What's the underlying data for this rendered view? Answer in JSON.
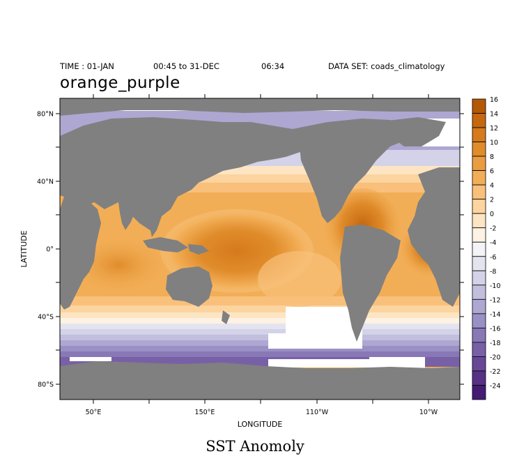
{
  "header": {
    "time_label": "TIME : 01-JAN",
    "time_range": "00:45 to 31-DEC",
    "time_end": "06:34",
    "dataset": "DATA SET: coads_climatology"
  },
  "palette_name": "orange_purple",
  "bottom_title": "SST Anomoly",
  "chart_data": {
    "type": "heatmap",
    "title": "orange_purple",
    "subtitle": "SST Anomoly",
    "xlabel": "LONGITUDE",
    "ylabel": "LATITUDE",
    "x_ticks": [
      "50°E",
      "150°E",
      "110°W",
      "10°W"
    ],
    "y_ticks": [
      "80°N",
      "40°N",
      "0°",
      "40°S",
      "80°S"
    ],
    "colorbar": {
      "levels": [
        16,
        14,
        12,
        10,
        8,
        6,
        4,
        2,
        0,
        -2,
        -4,
        -6,
        -8,
        -10,
        -12,
        -14,
        -16,
        -18,
        -20,
        -22,
        -24
      ],
      "colors": [
        "#b35806",
        "#c5670f",
        "#d67a1c",
        "#e08c2b",
        "#ea9d40",
        "#f2ae56",
        "#f8c07b",
        "#fbd49f",
        "#fde5c4",
        "#fdf2e3",
        "#f4f3f7",
        "#e4e4f0",
        "#d3d2e8",
        "#c1bede",
        "#aea7d2",
        "#9a90c4",
        "#8878b6",
        "#7860a6",
        "#684896",
        "#573185",
        "#451c74"
      ]
    },
    "grid": false,
    "legend": "right"
  }
}
